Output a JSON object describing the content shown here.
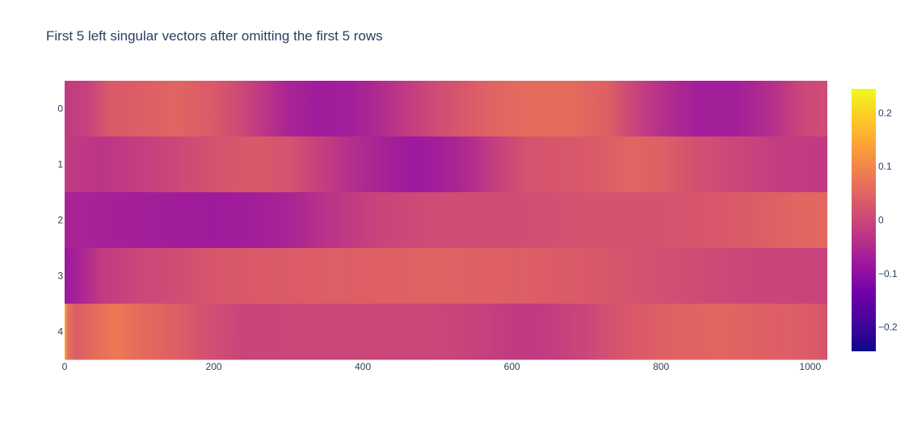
{
  "chart_data": {
    "type": "heatmap",
    "title": "First 5 left singular vectors after omitting the first 5 rows",
    "xlabel": "",
    "ylabel": "",
    "xlim": [
      0,
      1023
    ],
    "x_ticks": [
      0,
      200,
      400,
      600,
      800,
      1000
    ],
    "rows": [
      "0",
      "1",
      "2",
      "3",
      "4"
    ],
    "y_reversed": true,
    "colorscale": "Plasma",
    "colorscale_stops": [
      [
        0.0,
        "#0d0887"
      ],
      [
        0.111,
        "#46039f"
      ],
      [
        0.222,
        "#7201a8"
      ],
      [
        0.333,
        "#9c179e"
      ],
      [
        0.444,
        "#bd3786"
      ],
      [
        0.556,
        "#d8576b"
      ],
      [
        0.667,
        "#ed7953"
      ],
      [
        0.778,
        "#fb9f3a"
      ],
      [
        0.889,
        "#fdca26"
      ],
      [
        1.0,
        "#f0f921"
      ]
    ],
    "zmin": -0.245,
    "zmax": 0.245,
    "colorbar_ticks": [
      0.2,
      0.1,
      0,
      -0.1,
      -0.2
    ],
    "colorbar_tick_labels": [
      "0.2",
      "0.1",
      "0",
      "−0.1",
      "−0.2"
    ],
    "profiles": [
      {
        "row": "0",
        "points": [
          [
            0,
            -0.02
          ],
          [
            30,
            -0.01
          ],
          [
            60,
            0.03
          ],
          [
            110,
            0.04
          ],
          [
            150,
            0.05
          ],
          [
            200,
            0.03
          ],
          [
            240,
            0.0
          ],
          [
            270,
            -0.03
          ],
          [
            300,
            -0.06
          ],
          [
            340,
            -0.075
          ],
          [
            380,
            -0.07
          ],
          [
            420,
            -0.05
          ],
          [
            460,
            -0.02
          ],
          [
            500,
            0.01
          ],
          [
            540,
            0.03
          ],
          [
            580,
            0.05
          ],
          [
            620,
            0.06
          ],
          [
            680,
            0.06
          ],
          [
            730,
            0.04
          ],
          [
            760,
            0.0
          ],
          [
            800,
            -0.04
          ],
          [
            850,
            -0.07
          ],
          [
            900,
            -0.07
          ],
          [
            950,
            -0.04
          ],
          [
            990,
            0.0
          ],
          [
            1023,
            0.01
          ]
        ]
      },
      {
        "row": "1",
        "points": [
          [
            0,
            -0.02
          ],
          [
            50,
            -0.03
          ],
          [
            100,
            -0.015
          ],
          [
            150,
            0.0
          ],
          [
            200,
            0.02
          ],
          [
            260,
            0.03
          ],
          [
            300,
            0.02
          ],
          [
            340,
            -0.01
          ],
          [
            380,
            -0.04
          ],
          [
            420,
            -0.06
          ],
          [
            470,
            -0.08
          ],
          [
            500,
            -0.07
          ],
          [
            540,
            -0.05
          ],
          [
            580,
            -0.01
          ],
          [
            620,
            0.02
          ],
          [
            660,
            0.025
          ],
          [
            700,
            0.03
          ],
          [
            760,
            0.05
          ],
          [
            800,
            0.04
          ],
          [
            850,
            0.015
          ],
          [
            900,
            0.0
          ],
          [
            950,
            -0.015
          ],
          [
            1000,
            -0.02
          ],
          [
            1023,
            -0.02
          ]
        ]
      },
      {
        "row": "2",
        "points": [
          [
            0,
            -0.06
          ],
          [
            100,
            -0.07
          ],
          [
            200,
            -0.075
          ],
          [
            260,
            -0.07
          ],
          [
            300,
            -0.06
          ],
          [
            360,
            -0.03
          ],
          [
            420,
            -0.005
          ],
          [
            500,
            0.01
          ],
          [
            600,
            0.01
          ],
          [
            700,
            0.02
          ],
          [
            800,
            0.02
          ],
          [
            860,
            0.025
          ],
          [
            920,
            0.035
          ],
          [
            980,
            0.05
          ],
          [
            1023,
            0.055
          ]
        ]
      },
      {
        "row": "3",
        "points": [
          [
            0,
            -0.08
          ],
          [
            20,
            -0.06
          ],
          [
            50,
            -0.02
          ],
          [
            100,
            0.0
          ],
          [
            150,
            0.01
          ],
          [
            200,
            0.025
          ],
          [
            300,
            0.035
          ],
          [
            400,
            0.04
          ],
          [
            500,
            0.045
          ],
          [
            600,
            0.04
          ],
          [
            700,
            0.03
          ],
          [
            800,
            0.015
          ],
          [
            900,
            0.0
          ],
          [
            1000,
            -0.005
          ],
          [
            1023,
            -0.005
          ]
        ]
      },
      {
        "row": "4",
        "points": [
          [
            0,
            0.15
          ],
          [
            4,
            0.07
          ],
          [
            15,
            0.035
          ],
          [
            40,
            0.06
          ],
          [
            70,
            0.08
          ],
          [
            100,
            0.06
          ],
          [
            150,
            0.04
          ],
          [
            190,
            0.015
          ],
          [
            240,
            -0.005
          ],
          [
            300,
            0.0
          ],
          [
            400,
            0.0
          ],
          [
            500,
            0.0
          ],
          [
            560,
            -0.01
          ],
          [
            600,
            -0.02
          ],
          [
            640,
            -0.02
          ],
          [
            700,
            0.0
          ],
          [
            760,
            0.03
          ],
          [
            820,
            0.045
          ],
          [
            880,
            0.05
          ],
          [
            950,
            0.04
          ],
          [
            1000,
            0.035
          ],
          [
            1023,
            0.02
          ]
        ]
      }
    ]
  }
}
